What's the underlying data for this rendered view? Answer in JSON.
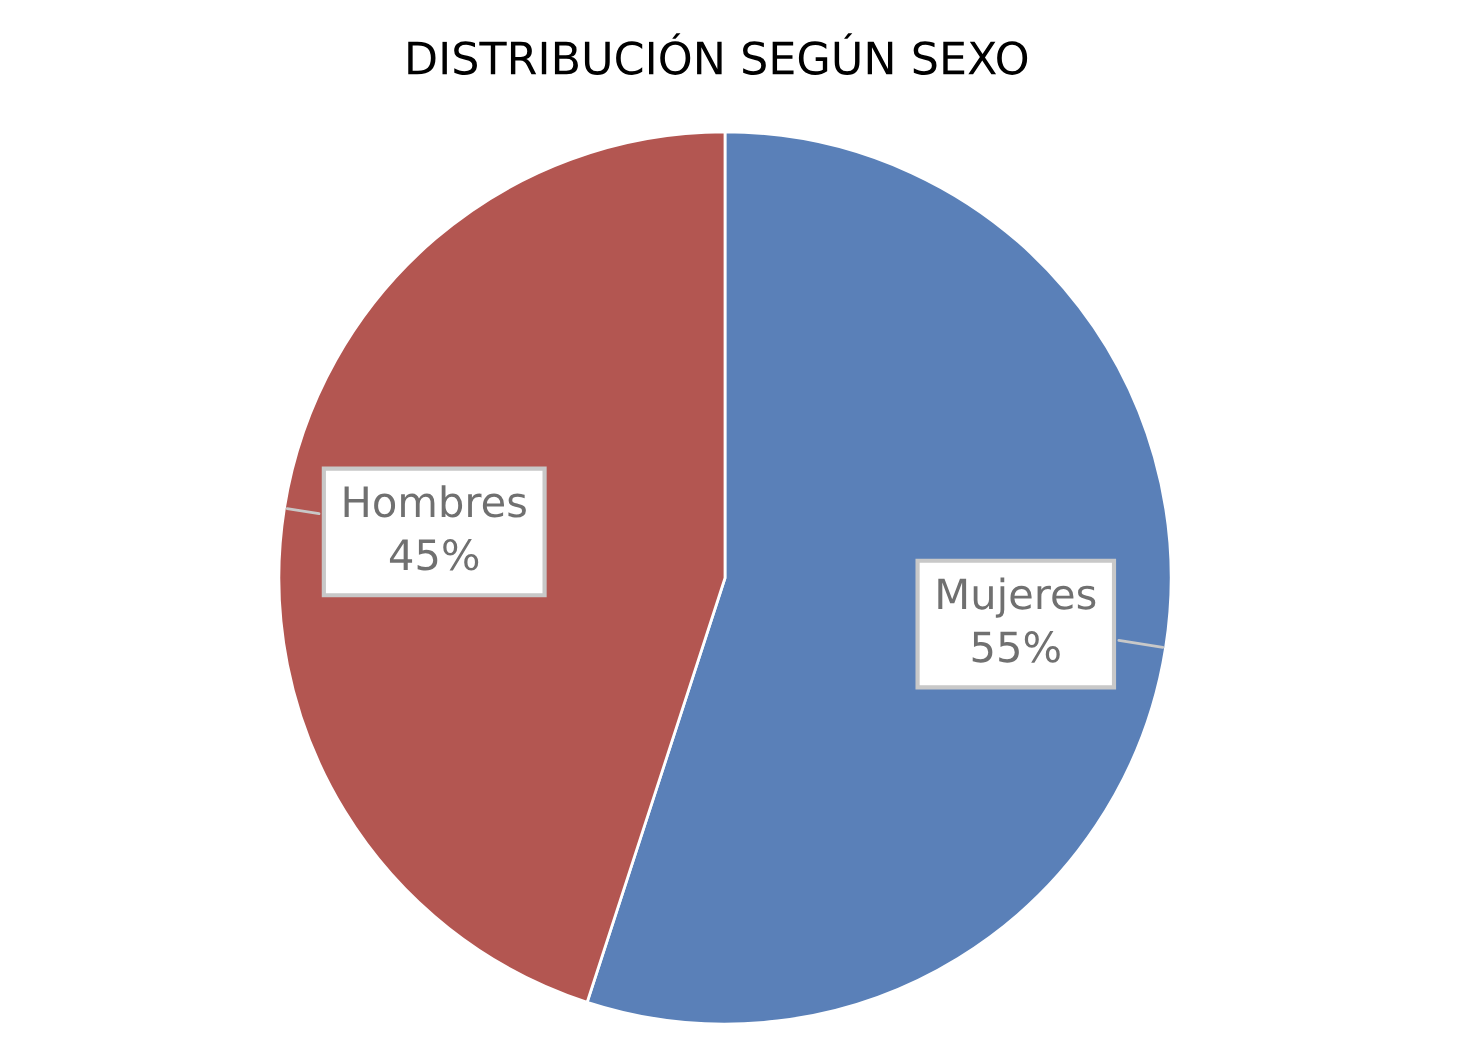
{
  "chart_data": {
    "type": "pie",
    "title": "DISTRIBUCIÓN SEGÚN SEXO",
    "categories": [
      "Mujeres",
      "Hombres"
    ],
    "values": [
      55,
      45
    ],
    "colors": [
      "#5a80b8",
      "#b35651"
    ],
    "value_labels": [
      "55%",
      "45%"
    ]
  }
}
